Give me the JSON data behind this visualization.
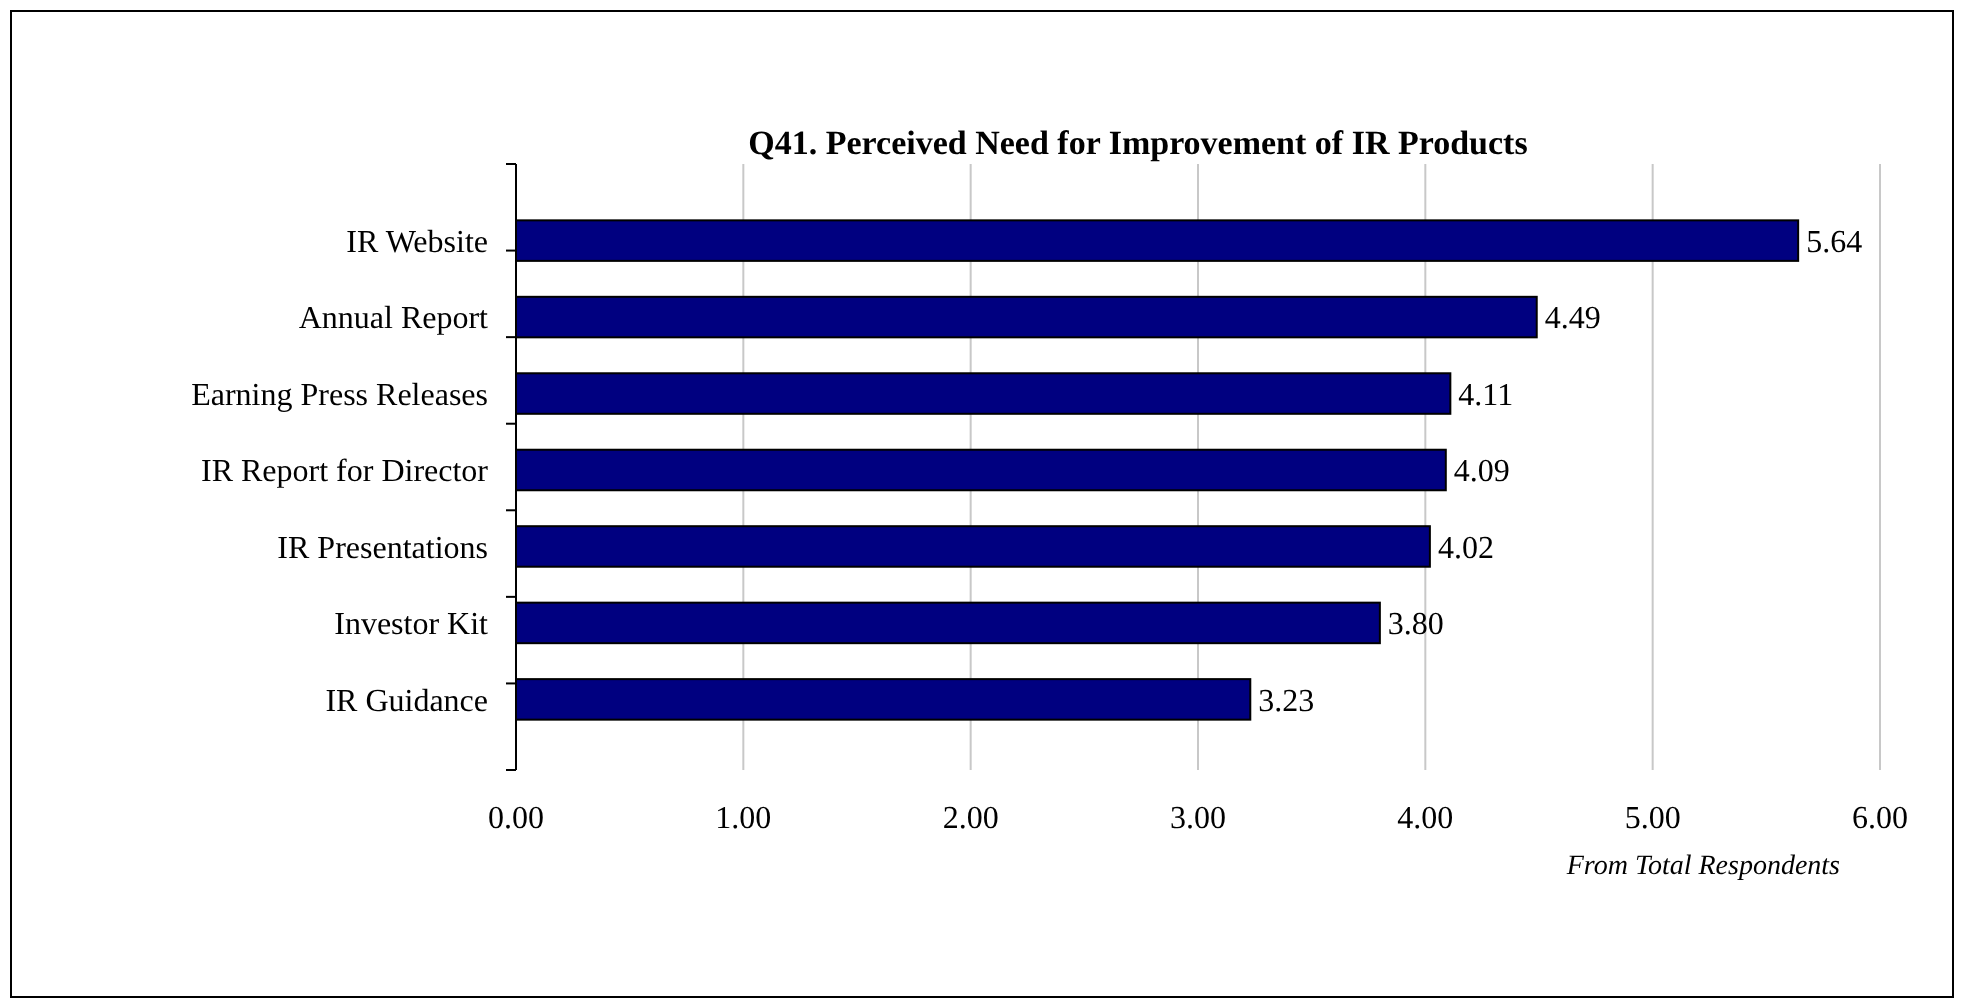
{
  "chart_data": {
    "type": "bar",
    "orientation": "horizontal",
    "title": "Q41. Perceived Need for Improvement of IR Products",
    "categories": [
      "IR Website",
      "Annual Report",
      "Earning Press Releases",
      "IR Report for Director",
      "IR Presentations",
      "Investor Kit",
      "IR Guidance"
    ],
    "values": [
      5.64,
      4.49,
      4.11,
      4.09,
      4.02,
      3.8,
      3.23
    ],
    "value_labels": [
      "5.64",
      "4.49",
      "4.11",
      "4.09",
      "4.02",
      "3.80",
      "3.23"
    ],
    "color": "#000080",
    "xlim": [
      0,
      6
    ],
    "xticks": [
      {
        "value": 0,
        "label": "0.00"
      },
      {
        "value": 1,
        "label": "1.00"
      },
      {
        "value": 2,
        "label": "2.00"
      },
      {
        "value": 3,
        "label": "3.00"
      },
      {
        "value": 4,
        "label": "4.00"
      },
      {
        "value": 5,
        "label": "5.00"
      },
      {
        "value": 6,
        "label": "6.00"
      }
    ],
    "grid": "x",
    "annotations": [
      "From Total Respondents"
    ]
  }
}
